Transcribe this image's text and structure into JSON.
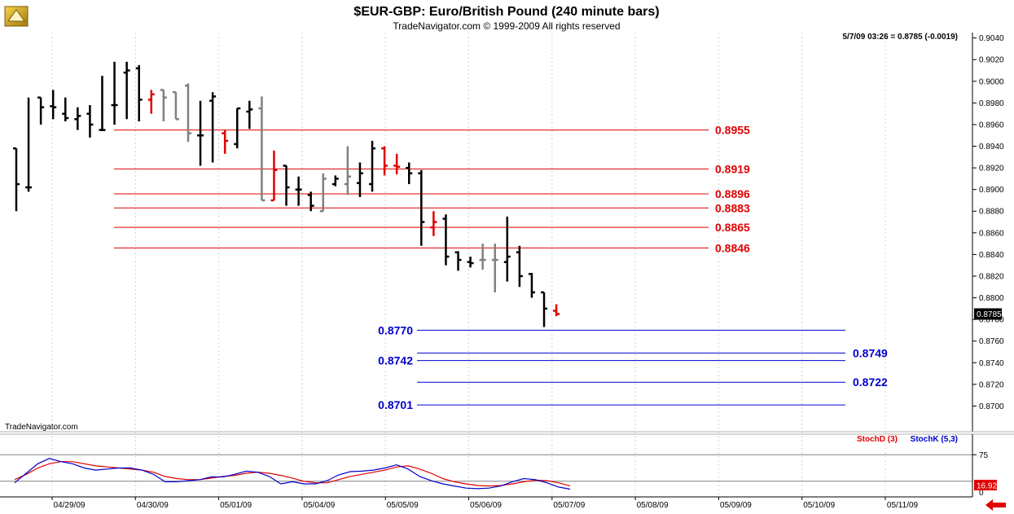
{
  "header": {
    "title": "$EUR-GBP:  Euro/British Pound  (240 minute bars)",
    "copyright": "TradeNavigator.com © 1999-2009 All rights reserved",
    "quote": "5/7/09 03:26 = 0.8785 (-0.0019)",
    "watermark": "TradeNavigator.com"
  },
  "colors": {
    "up": "#000000",
    "red": "#e00000",
    "gray": "#808080",
    "blue": "#0000cc",
    "grid": "#d0d0d0"
  },
  "chart_data": [
    {
      "type": "ohlc",
      "title": "$EUR-GBP:  Euro/British Pound  (240 minute bars)",
      "ylim": [
        0.868,
        0.9045
      ],
      "y_ticks": [
        "0.9040",
        "0.9020",
        "0.9000",
        "0.8980",
        "0.8960",
        "0.8940",
        "0.8920",
        "0.8900",
        "0.8880",
        "0.8860",
        "0.8840",
        "0.8820",
        "0.8800",
        "0.8780",
        "0.8760",
        "0.8740",
        "0.8720",
        "0.8700"
      ],
      "x_ticks": [
        "04/29/09",
        "04/30/09",
        "05/01/09",
        "05/04/09",
        "05/05/09",
        "05/06/09",
        "05/07/09",
        "05/08/09",
        "05/09/09",
        "05/10/09",
        "05/11/09"
      ],
      "last_price": "0.8785",
      "bars": [
        {
          "o": 0.8938,
          "h": 0.8938,
          "l": 0.888,
          "c": 0.8905,
          "color": "black"
        },
        {
          "o": 0.8902,
          "h": 0.8985,
          "l": 0.8898,
          "c": 0.8902,
          "color": "black"
        },
        {
          "o": 0.8985,
          "h": 0.8985,
          "l": 0.896,
          "c": 0.8976,
          "color": "black"
        },
        {
          "o": 0.8977,
          "h": 0.8992,
          "l": 0.8965,
          "c": 0.8976,
          "color": "black"
        },
        {
          "o": 0.897,
          "h": 0.8985,
          "l": 0.8963,
          "c": 0.8966,
          "color": "black"
        },
        {
          "o": 0.8965,
          "h": 0.8976,
          "l": 0.8955,
          "c": 0.8968,
          "color": "black"
        },
        {
          "o": 0.897,
          "h": 0.8978,
          "l": 0.8948,
          "c": 0.896,
          "color": "black"
        },
        {
          "o": 0.8955,
          "h": 0.9005,
          "l": 0.8954,
          "c": 0.8955,
          "color": "black"
        },
        {
          "o": 0.8978,
          "h": 0.9018,
          "l": 0.896,
          "c": 0.8978,
          "color": "black"
        },
        {
          "o": 0.9008,
          "h": 0.9018,
          "l": 0.8965,
          "c": 0.901,
          "color": "black"
        },
        {
          "o": 0.9012,
          "h": 0.9015,
          "l": 0.8963,
          "c": 0.8983,
          "color": "black"
        },
        {
          "o": 0.8983,
          "h": 0.8992,
          "l": 0.897,
          "c": 0.8988,
          "color": "red"
        },
        {
          "o": 0.8992,
          "h": 0.8992,
          "l": 0.8963,
          "c": 0.8985,
          "color": "gray"
        },
        {
          "o": 0.899,
          "h": 0.899,
          "l": 0.8965,
          "c": 0.8965,
          "color": "gray"
        },
        {
          "o": 0.8996,
          "h": 0.8998,
          "l": 0.8944,
          "c": 0.8952,
          "color": "gray"
        },
        {
          "o": 0.895,
          "h": 0.8982,
          "l": 0.8922,
          "c": 0.895,
          "color": "black"
        },
        {
          "o": 0.8982,
          "h": 0.899,
          "l": 0.8925,
          "c": 0.8986,
          "color": "black"
        },
        {
          "o": 0.8952,
          "h": 0.8955,
          "l": 0.8933,
          "c": 0.8945,
          "color": "red"
        },
        {
          "o": 0.8942,
          "h": 0.8975,
          "l": 0.8938,
          "c": 0.8975,
          "color": "black"
        },
        {
          "o": 0.8972,
          "h": 0.8982,
          "l": 0.8956,
          "c": 0.8974,
          "color": "black"
        },
        {
          "o": 0.8975,
          "h": 0.8986,
          "l": 0.889,
          "c": 0.889,
          "color": "gray"
        },
        {
          "o": 0.889,
          "h": 0.8936,
          "l": 0.889,
          "c": 0.8918,
          "color": "red"
        },
        {
          "o": 0.8922,
          "h": 0.8922,
          "l": 0.8885,
          "c": 0.8902,
          "color": "black"
        },
        {
          "o": 0.89,
          "h": 0.8912,
          "l": 0.8885,
          "c": 0.89,
          "color": "black"
        },
        {
          "o": 0.8895,
          "h": 0.8898,
          "l": 0.888,
          "c": 0.8885,
          "color": "black"
        },
        {
          "o": 0.888,
          "h": 0.8915,
          "l": 0.888,
          "c": 0.891,
          "color": "gray"
        },
        {
          "o": 0.8905,
          "h": 0.8913,
          "l": 0.8903,
          "c": 0.891,
          "color": "black"
        },
        {
          "o": 0.8905,
          "h": 0.894,
          "l": 0.8895,
          "c": 0.8912,
          "color": "gray"
        },
        {
          "o": 0.8906,
          "h": 0.8925,
          "l": 0.8893,
          "c": 0.8915,
          "color": "black"
        },
        {
          "o": 0.8905,
          "h": 0.8945,
          "l": 0.8898,
          "c": 0.8938,
          "color": "black"
        },
        {
          "o": 0.8938,
          "h": 0.894,
          "l": 0.8913,
          "c": 0.8922,
          "color": "red"
        },
        {
          "o": 0.8922,
          "h": 0.8933,
          "l": 0.8914,
          "c": 0.8921,
          "color": "red"
        },
        {
          "o": 0.892,
          "h": 0.8925,
          "l": 0.8905,
          "c": 0.8915,
          "color": "black"
        },
        {
          "o": 0.8915,
          "h": 0.8918,
          "l": 0.8848,
          "c": 0.887,
          "color": "black"
        },
        {
          "o": 0.8865,
          "h": 0.888,
          "l": 0.8857,
          "c": 0.887,
          "color": "red"
        },
        {
          "o": 0.8873,
          "h": 0.8877,
          "l": 0.883,
          "c": 0.8838,
          "color": "black"
        },
        {
          "o": 0.8842,
          "h": 0.8843,
          "l": 0.8825,
          "c": 0.8835,
          "color": "black"
        },
        {
          "o": 0.8833,
          "h": 0.8838,
          "l": 0.8828,
          "c": 0.8832,
          "color": "black"
        },
        {
          "o": 0.8835,
          "h": 0.885,
          "l": 0.8826,
          "c": 0.8835,
          "color": "gray"
        },
        {
          "o": 0.8835,
          "h": 0.885,
          "l": 0.8805,
          "c": 0.8835,
          "color": "gray"
        },
        {
          "o": 0.8833,
          "h": 0.8875,
          "l": 0.8815,
          "c": 0.8838,
          "color": "black"
        },
        {
          "o": 0.8842,
          "h": 0.8848,
          "l": 0.881,
          "c": 0.882,
          "color": "black"
        },
        {
          "o": 0.8822,
          "h": 0.8823,
          "l": 0.88,
          "c": 0.8805,
          "color": "black"
        },
        {
          "o": 0.8805,
          "h": 0.8805,
          "l": 0.8773,
          "c": 0.879,
          "color": "black"
        },
        {
          "o": 0.8788,
          "h": 0.8794,
          "l": 0.8783,
          "c": 0.8785,
          "color": "red"
        }
      ],
      "levels": [
        {
          "value": 0.8955,
          "label": "0.8955",
          "color": "red",
          "side": "right"
        },
        {
          "value": 0.8919,
          "label": "0.8919",
          "color": "red",
          "side": "right"
        },
        {
          "value": 0.8896,
          "label": "0.8896",
          "color": "red",
          "side": "right"
        },
        {
          "value": 0.8883,
          "label": "0.8883",
          "color": "red",
          "side": "right"
        },
        {
          "value": 0.8865,
          "label": "0.8865",
          "color": "red",
          "side": "right"
        },
        {
          "value": 0.8846,
          "label": "0.8846",
          "color": "red",
          "side": "right"
        },
        {
          "value": 0.877,
          "label": "0.8770",
          "color": "blue",
          "side": "left"
        },
        {
          "value": 0.8749,
          "label": "0.8749",
          "color": "blue",
          "side": "right"
        },
        {
          "value": 0.8742,
          "label": "0.8742",
          "color": "blue",
          "side": "left"
        },
        {
          "value": 0.8722,
          "label": "0.8722",
          "color": "blue",
          "side": "right"
        },
        {
          "value": 0.8701,
          "label": "0.8701",
          "color": "blue",
          "side": "left"
        }
      ]
    },
    {
      "type": "line",
      "ylim": [
        0,
        100
      ],
      "y_ticks": [
        "75"
      ],
      "ref_lines": [
        75,
        25
      ],
      "last_value": "16.92",
      "bottom_tick": "0",
      "series": [
        {
          "name": "StochD (3)",
          "color": "red",
          "values": [
            28,
            38,
            50,
            58,
            62,
            62,
            58,
            54,
            52,
            50,
            48,
            46,
            42,
            34,
            30,
            28,
            28,
            31,
            34,
            36,
            40,
            42,
            40,
            36,
            31,
            25,
            22,
            22,
            28,
            34,
            38,
            42,
            46,
            52,
            54,
            48,
            40,
            30,
            24,
            20,
            17,
            16,
            17,
            20,
            24,
            27,
            26,
            22,
            16
          ]
        },
        {
          "name": "StochK (5,3)",
          "color": "blue",
          "values": [
            22,
            40,
            58,
            68,
            62,
            58,
            50,
            46,
            48,
            50,
            50,
            46,
            38,
            24,
            24,
            26,
            28,
            33,
            33,
            38,
            44,
            42,
            34,
            20,
            24,
            20,
            20,
            26,
            37,
            43,
            44,
            46,
            50,
            56,
            48,
            34,
            26,
            20,
            16,
            12,
            11,
            12,
            16,
            24,
            30,
            28,
            22,
            14,
            10
          ]
        }
      ]
    }
  ]
}
